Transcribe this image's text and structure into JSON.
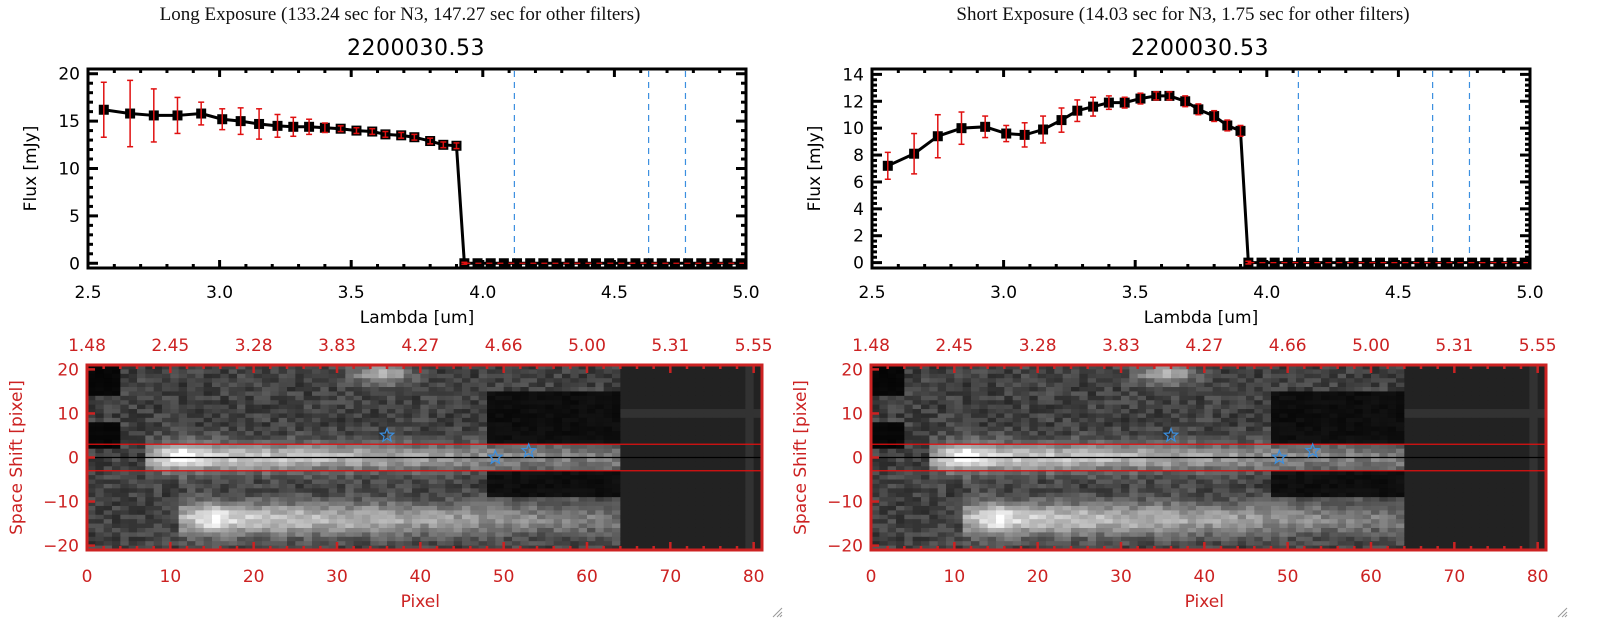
{
  "panels": [
    {
      "id": "long",
      "header": "Long Exposure (133.24 sec for N3, 147.27 sec for other filters)",
      "title": "2200030.53",
      "chart_data": {
        "type": "line",
        "title": "2200030.53",
        "xlabel": "Lambda [um]",
        "ylabel": "Flux [mJy]",
        "xlim": [
          2.5,
          5.0
        ],
        "ylim": [
          -0.5,
          20.5
        ],
        "xticks": [
          2.5,
          3.0,
          3.5,
          4.0,
          4.5,
          5.0
        ],
        "xtick_labels": [
          "2.5",
          "3.0",
          "3.5",
          "4.0",
          "4.5",
          "5.0"
        ],
        "yticks": [
          0,
          5,
          10,
          15,
          20
        ],
        "ytick_labels": [
          "0",
          "5",
          "10",
          "15",
          "20"
        ],
        "grid": false,
        "series": [
          {
            "name": "flux",
            "color": "#000000",
            "error_color": "#e01010",
            "x": [
              2.56,
              2.66,
              2.75,
              2.84,
              2.93,
              3.01,
              3.08,
              3.15,
              3.22,
              3.28,
              3.34,
              3.4,
              3.46,
              3.52,
              3.58,
              3.63,
              3.69,
              3.74,
              3.8,
              3.85,
              3.9,
              3.93,
              3.98,
              4.03,
              4.08,
              4.13,
              4.18,
              4.23,
              4.28,
              4.33,
              4.38,
              4.43,
              4.48,
              4.53,
              4.58,
              4.63,
              4.68,
              4.73,
              4.78,
              4.83,
              4.88,
              4.93,
              4.98
            ],
            "y": [
              16.2,
              15.8,
              15.6,
              15.6,
              15.8,
              15.2,
              15.0,
              14.7,
              14.5,
              14.4,
              14.4,
              14.3,
              14.2,
              14.0,
              13.9,
              13.6,
              13.5,
              13.3,
              12.9,
              12.5,
              12.4,
              0,
              0,
              0,
              0,
              0,
              0,
              0,
              0,
              0,
              0,
              0,
              0,
              0,
              0,
              0,
              0,
              0,
              0,
              0,
              0,
              0,
              0
            ],
            "yerr": [
              2.9,
              3.5,
              2.8,
              1.9,
              1.2,
              1.1,
              1.4,
              1.6,
              1.2,
              1.0,
              0.8,
              0.5,
              0.3,
              0.3,
              0.3,
              0.3,
              0.3,
              0.3,
              0.3,
              0.3,
              0.3,
              0.1,
              0,
              0,
              0,
              0,
              0,
              0,
              0,
              0,
              0,
              0,
              0,
              0,
              0,
              0,
              0,
              0,
              0,
              0,
              0,
              0,
              0
            ]
          }
        ],
        "vlines": [
          4.12,
          4.63,
          4.77
        ],
        "vline_color": "#3b8fe0",
        "hline": 0,
        "hline_color": "#e01010"
      },
      "image": {
        "xlabel": "Pixel",
        "ylabel": "Space Shift [pixel]",
        "xlim": [
          0,
          81
        ],
        "ylim": [
          -21,
          21
        ],
        "xticks": [
          0,
          10,
          20,
          30,
          40,
          50,
          60,
          70,
          80
        ],
        "xtick_labels": [
          "0",
          "10",
          "20",
          "30",
          "40",
          "50",
          "60",
          "70",
          "80"
        ],
        "yticks": [
          -20,
          -10,
          0,
          10,
          20
        ],
        "ytick_labels": [
          "−20",
          "−10",
          "0",
          "10",
          "20"
        ],
        "top_tick_labels": [
          "1.48",
          "2.45",
          "3.28",
          "3.83",
          "4.27",
          "4.66",
          "5.00",
          "5.31",
          "5.55"
        ],
        "aperture": [
          -3,
          3
        ],
        "stars": [
          [
            36,
            5
          ],
          [
            49,
            0
          ],
          [
            53,
            1.5
          ]
        ],
        "axis_color": "#cc2222",
        "star_color": "#3b8fe0"
      }
    },
    {
      "id": "short",
      "header": "Short Exposure (14.03 sec for N3, 1.75 sec for other filters)",
      "title": "2200030.53",
      "chart_data": {
        "type": "line",
        "title": "2200030.53",
        "xlabel": "Lambda [um]",
        "ylabel": "Flux [mJy]",
        "xlim": [
          2.5,
          5.0
        ],
        "ylim": [
          -0.4,
          14.4
        ],
        "xticks": [
          2.5,
          3.0,
          3.5,
          4.0,
          4.5,
          5.0
        ],
        "xtick_labels": [
          "2.5",
          "3.0",
          "3.5",
          "4.0",
          "4.5",
          "5.0"
        ],
        "yticks": [
          0,
          2,
          4,
          6,
          8,
          10,
          12,
          14
        ],
        "ytick_labels": [
          "0",
          "2",
          "4",
          "6",
          "8",
          "10",
          "12",
          "14"
        ],
        "grid": false,
        "series": [
          {
            "name": "flux",
            "color": "#000000",
            "error_color": "#e01010",
            "x": [
              2.56,
              2.66,
              2.75,
              2.84,
              2.93,
              3.01,
              3.08,
              3.15,
              3.22,
              3.28,
              3.34,
              3.4,
              3.46,
              3.52,
              3.58,
              3.63,
              3.69,
              3.74,
              3.8,
              3.85,
              3.9,
              3.93,
              3.98,
              4.03,
              4.08,
              4.13,
              4.18,
              4.23,
              4.28,
              4.33,
              4.38,
              4.43,
              4.48,
              4.53,
              4.58,
              4.63,
              4.68,
              4.73,
              4.78,
              4.83,
              4.88,
              4.93,
              4.98
            ],
            "y": [
              7.2,
              8.1,
              9.4,
              10.0,
              10.1,
              9.6,
              9.5,
              9.9,
              10.6,
              11.3,
              11.6,
              11.9,
              11.9,
              12.2,
              12.4,
              12.4,
              12.0,
              11.4,
              10.9,
              10.2,
              9.8,
              0,
              0,
              0,
              0,
              0,
              0,
              0,
              0,
              0,
              0,
              0,
              0,
              0,
              0,
              0,
              0,
              0,
              0,
              0,
              0,
              0,
              0
            ],
            "yerr": [
              1.0,
              1.5,
              1.6,
              1.2,
              0.8,
              0.6,
              0.9,
              1.0,
              0.9,
              0.8,
              0.7,
              0.5,
              0.4,
              0.4,
              0.3,
              0.3,
              0.4,
              0.4,
              0.4,
              0.4,
              0.4,
              0.1,
              0,
              0,
              0,
              0,
              0,
              0,
              0,
              0,
              0,
              0,
              0,
              0,
              0,
              0,
              0,
              0,
              0,
              0,
              0,
              0,
              0
            ]
          }
        ],
        "vlines": [
          4.12,
          4.63,
          4.77
        ],
        "vline_color": "#3b8fe0",
        "hline": 0,
        "hline_color": "#e01010"
      },
      "image": {
        "xlabel": "Pixel",
        "ylabel": "Space Shift [pixel]",
        "xlim": [
          0,
          81
        ],
        "ylim": [
          -21,
          21
        ],
        "xticks": [
          0,
          10,
          20,
          30,
          40,
          50,
          60,
          70,
          80
        ],
        "xtick_labels": [
          "0",
          "10",
          "20",
          "30",
          "40",
          "50",
          "60",
          "70",
          "80"
        ],
        "yticks": [
          -20,
          -10,
          0,
          10,
          20
        ],
        "ytick_labels": [
          "−20",
          "−10",
          "0",
          "10",
          "20"
        ],
        "top_tick_labels": [
          "1.48",
          "2.45",
          "3.28",
          "3.83",
          "4.27",
          "4.66",
          "5.00",
          "5.31",
          "5.55"
        ],
        "aperture": [
          -3,
          3
        ],
        "stars": [
          [
            36,
            5
          ],
          [
            49,
            0
          ],
          [
            53,
            1.5
          ]
        ],
        "axis_color": "#cc2222",
        "star_color": "#3b8fe0"
      }
    }
  ]
}
